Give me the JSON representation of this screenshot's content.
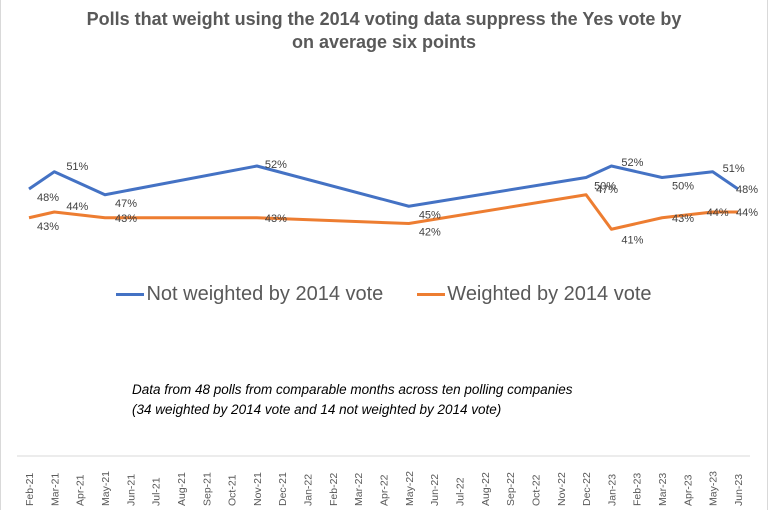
{
  "chart_data": {
    "type": "line",
    "title": "Polls that weight using the 2014 voting data suppress the Yes vote by on average six points",
    "title_lines": [
      "Polls that weight using the 2014 voting data suppress the Yes vote by",
      "on average six points"
    ],
    "xlabel": "",
    "ylabel": "",
    "categories": [
      "Feb-21",
      "Mar-21",
      "Apr-21",
      "May-21",
      "Jun-21",
      "Jul-21",
      "Aug-21",
      "Sep-21",
      "Oct-21",
      "Nov-21",
      "Dec-21",
      "Jan-22",
      "Feb-22",
      "Mar-22",
      "Apr-22",
      "May-22",
      "Jun-22",
      "Jul-22",
      "Aug-22",
      "Sep-22",
      "Oct-22",
      "Nov-22",
      "Dec-22",
      "Jan-23",
      "Feb-23",
      "Mar-23",
      "Apr-23",
      "May-23",
      "Jun-23"
    ],
    "series": [
      {
        "name": "Not weighted by 2014 vote",
        "color": "#4472c4",
        "points": [
          {
            "x": "Feb-21",
            "y": 48
          },
          {
            "x": "Mar-21",
            "y": 51
          },
          {
            "x": "May-21",
            "y": 47
          },
          {
            "x": "Nov-21",
            "y": 52
          },
          {
            "x": "May-22",
            "y": 45
          },
          {
            "x": "Dec-22",
            "y": 50
          },
          {
            "x": "Jan-23",
            "y": 52
          },
          {
            "x": "Mar-23",
            "y": 50
          },
          {
            "x": "May-23",
            "y": 51
          },
          {
            "x": "Jun-23",
            "y": 48
          }
        ]
      },
      {
        "name": "Weighted by 2014 vote",
        "color": "#ed7d31",
        "points": [
          {
            "x": "Feb-21",
            "y": 43
          },
          {
            "x": "Mar-21",
            "y": 44
          },
          {
            "x": "May-21",
            "y": 43
          },
          {
            "x": "Nov-21",
            "y": 43
          },
          {
            "x": "May-22",
            "y": 42
          },
          {
            "x": "Dec-22",
            "y": 47
          },
          {
            "x": "Jan-23",
            "y": 41
          },
          {
            "x": "Mar-23",
            "y": 43
          },
          {
            "x": "May-23",
            "y": 44
          },
          {
            "x": "Jun-23",
            "y": 44
          }
        ]
      }
    ],
    "data_label_suffix": "%",
    "legend_position": "bottom",
    "grid": false,
    "annotation": [
      "Data from 48 polls from comparable months across ten polling companies",
      "(34 weighted by 2014 vote and 14 not weighted by 2014 vote)"
    ]
  }
}
